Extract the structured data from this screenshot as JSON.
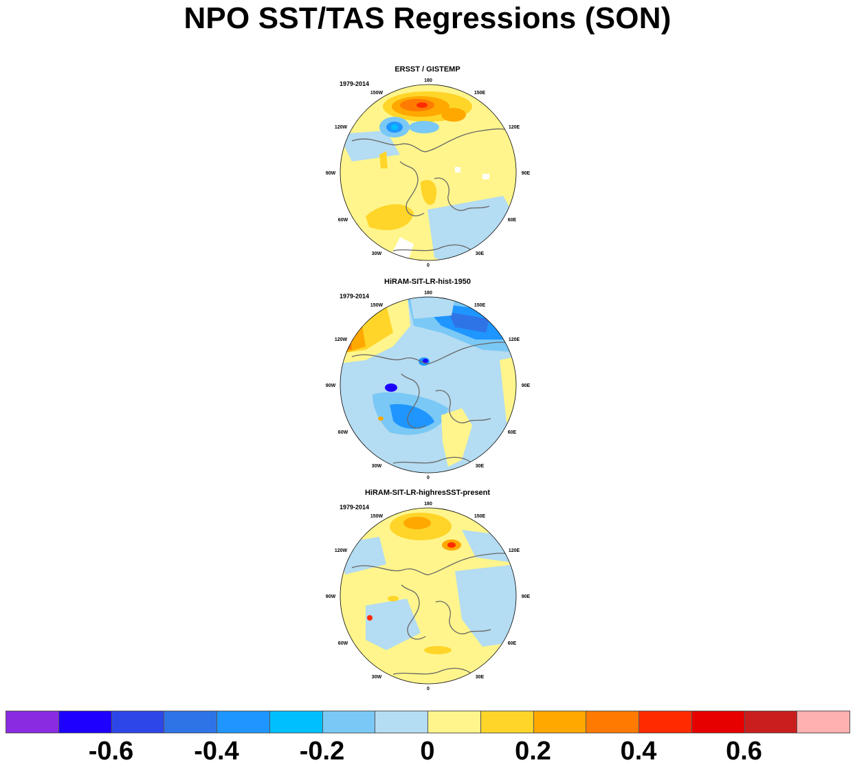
{
  "title": "NPO SST/TAS Regressions (SON)",
  "panels": [
    {
      "title": "ERSST / GISTEMP",
      "period": "1979-2014"
    },
    {
      "title": "HiRAM-SIT-LR-hist-1950",
      "period": "1979-2014"
    },
    {
      "title": "HiRAM-SIT-LR-highresSST-present",
      "period": "1979-2014"
    }
  ],
  "lon_labels": {
    "top": "180",
    "tl": "150W",
    "tr": "150E",
    "ul": "120W",
    "ur": "120E",
    "l": "90W",
    "r": "90E",
    "ll": "60W",
    "lr": "60E",
    "bl": "30W",
    "br": "30E",
    "bottom": "0"
  },
  "colorbar": {
    "colors": [
      "#8a2be2",
      "#1e00ff",
      "#2d46e8",
      "#2f74e6",
      "#1f96ff",
      "#00bfff",
      "#7ac8f5",
      "#b4dcf2",
      "#fff58c",
      "#ffd529",
      "#ffa800",
      "#ff7a00",
      "#ff2a00",
      "#e60000",
      "#c81e1e",
      "#ffb0b0"
    ],
    "tick_labels": [
      "-0.6",
      "-0.4",
      "-0.2",
      "0",
      "0.2",
      "0.4",
      "0.6"
    ]
  }
}
